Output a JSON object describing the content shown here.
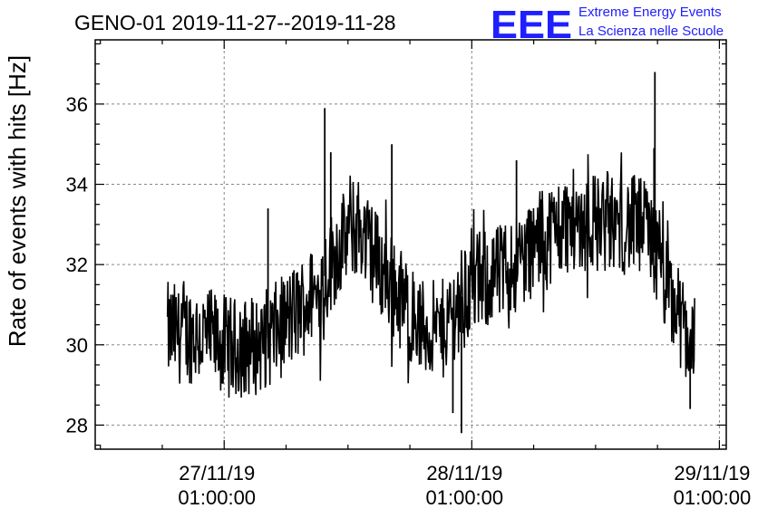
{
  "header": {
    "title": "GENO-01 2019-11-27--2019-11-28",
    "logo_letters": "EEE",
    "logo_line1": "Extreme Energy Events",
    "logo_line2": "La Scienza nelle Scuole",
    "logo_color": "#1f1fff"
  },
  "chart_data": {
    "type": "line",
    "ylabel": "Rate of events with hits [Hz]",
    "xlabel": "",
    "ylim": [
      27.4,
      37.6
    ],
    "yticks": [
      28,
      30,
      32,
      34,
      36
    ],
    "xlim": [
      "2019-11-26T12:30:00",
      "2019-11-29T01:40:00"
    ],
    "xticks": [
      {
        "t": "2019-11-27T01:00:00",
        "line1": "27/11/19",
        "line2": "01:00:00"
      },
      {
        "t": "2019-11-28T01:00:00",
        "line1": "28/11/19",
        "line2": "01:00:00"
      },
      {
        "t": "2019-11-29T01:00:00",
        "line1": "29/11/19",
        "line2": "01:00:00"
      }
    ],
    "grid": true,
    "line_color": "#000000",
    "series": [
      {
        "x": [
          "2019-11-26T22:00:00",
          "2019-11-27T00:00:00",
          "2019-11-27T02:00:00",
          "2019-11-27T04:00:00",
          "2019-11-27T06:00:00",
          "2019-11-27T08:00:00",
          "2019-11-27T10:00:00",
          "2019-11-27T12:00:00",
          "2019-11-27T14:00:00",
          "2019-11-27T16:00:00",
          "2019-11-27T18:00:00",
          "2019-11-27T20:00:00",
          "2019-11-27T22:00:00",
          "2019-11-28T00:00:00",
          "2019-11-28T02:00:00",
          "2019-11-28T04:00:00",
          "2019-11-28T06:00:00",
          "2019-11-28T08:00:00",
          "2019-11-28T10:00:00",
          "2019-11-28T12:00:00",
          "2019-11-28T14:00:00",
          "2019-11-28T16:00:00",
          "2019-11-28T18:00:00",
          "2019-11-28T20:00:00",
          "2019-11-28T22:00:00"
        ],
        "y": [
          30.3,
          30.1,
          29.9,
          30.0,
          30.3,
          30.8,
          31.3,
          32.4,
          33.0,
          32.0,
          31.2,
          30.4,
          30.3,
          31.2,
          31.6,
          31.8,
          32.2,
          32.7,
          33.0,
          33.1,
          33.0,
          33.0,
          32.9,
          31.3,
          30.2
        ],
        "spread": 1.6,
        "spikes": [
          {
            "x": "2019-11-27T10:45:00",
            "y": 35.9
          },
          {
            "x": "2019-11-27T11:20:00",
            "y": 34.8
          },
          {
            "x": "2019-11-27T05:15:00",
            "y": 33.4
          },
          {
            "x": "2019-11-27T17:15:00",
            "y": 35.0
          },
          {
            "x": "2019-11-28T18:45:00",
            "y": 36.8
          },
          {
            "x": "2019-11-28T18:40:00",
            "y": 34.9
          },
          {
            "x": "2019-11-28T05:20:00",
            "y": 34.6
          },
          {
            "x": "2019-11-27T23:10:00",
            "y": 28.3
          },
          {
            "x": "2019-11-28T00:00:00",
            "y": 27.8
          },
          {
            "x": "2019-11-28T22:10:00",
            "y": 28.4
          }
        ]
      }
    ]
  }
}
